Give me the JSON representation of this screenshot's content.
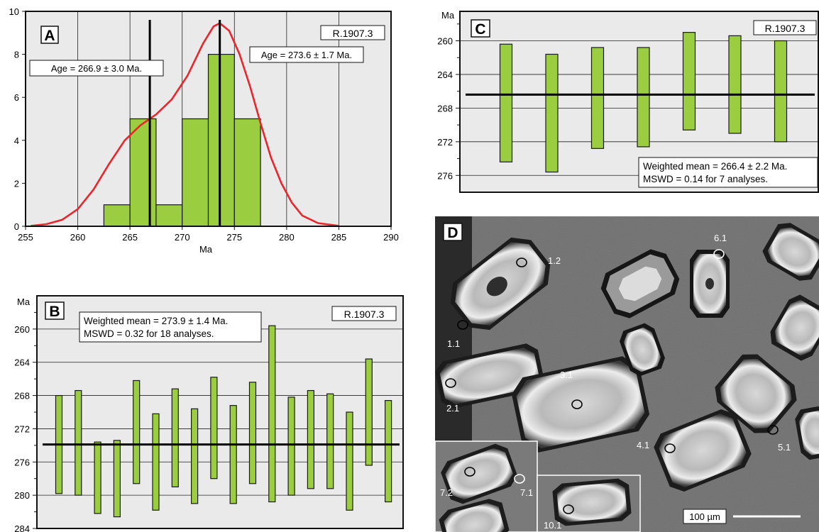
{
  "colors": {
    "bar_fill": "#9acd3f",
    "bar_stroke": "#1a1a1a",
    "curve": "#e8262b",
    "plot_bg": "#eaeaea",
    "mean_line": "#000000"
  },
  "chart_data": [
    {
      "id": "A",
      "type": "bar",
      "panel_letter": "A",
      "sample": "R.1907.3",
      "xlabel": "Ma",
      "xlim": [
        255,
        290
      ],
      "ylim": [
        0,
        10
      ],
      "x_ticks": [
        255,
        260,
        265,
        270,
        275,
        280,
        285,
        290
      ],
      "y_ticks": [
        0,
        2,
        4,
        6,
        8,
        10
      ],
      "grid": true,
      "bins": [
        {
          "from": 262.5,
          "to": 265,
          "count": 1
        },
        {
          "from": 265,
          "to": 267.5,
          "count": 5
        },
        {
          "from": 267.5,
          "to": 270,
          "count": 1
        },
        {
          "from": 270,
          "to": 272.5,
          "count": 5
        },
        {
          "from": 272.5,
          "to": 275,
          "count": 8
        },
        {
          "from": 275,
          "to": 277.5,
          "count": 5
        }
      ],
      "density_curve": [
        [
          255.5,
          0.02
        ],
        [
          257,
          0.1
        ],
        [
          258.5,
          0.3
        ],
        [
          260,
          0.8
        ],
        [
          261.5,
          1.7
        ],
        [
          263,
          2.9
        ],
        [
          264.5,
          4.0
        ],
        [
          266,
          4.7
        ],
        [
          267.5,
          5.2
        ],
        [
          269,
          5.9
        ],
        [
          270.5,
          7.0
        ],
        [
          272,
          8.5
        ],
        [
          273,
          9.3
        ],
        [
          273.6,
          9.45
        ],
        [
          274.5,
          9.1
        ],
        [
          275.5,
          8.0
        ],
        [
          276.5,
          6.5
        ],
        [
          277.5,
          4.8
        ],
        [
          278.5,
          3.2
        ],
        [
          279.5,
          2.0
        ],
        [
          280.5,
          1.1
        ],
        [
          281.5,
          0.5
        ],
        [
          283,
          0.15
        ],
        [
          285,
          0.02
        ]
      ],
      "age_lines": [
        {
          "x": 266.9,
          "label": "Age = 266.9 ± 3.0 Ma."
        },
        {
          "x": 273.6,
          "label": "Age = 273.6 ± 1.7 Ma."
        }
      ]
    },
    {
      "id": "B",
      "type": "bar",
      "subtype": "error-bars",
      "panel_letter": "B",
      "sample": "R.1907.3",
      "ylabel": "Ma",
      "ylim": [
        284,
        256
      ],
      "y_ticks": [
        260,
        264,
        268,
        272,
        276,
        280,
        284
      ],
      "grid": true,
      "ranges": [
        [
          268.0,
          279.8
        ],
        [
          267.4,
          280.0
        ],
        [
          273.6,
          282.2
        ],
        [
          273.4,
          282.6
        ],
        [
          266.2,
          278.6
        ],
        [
          270.2,
          281.8
        ],
        [
          267.2,
          279.0
        ],
        [
          269.6,
          281.0
        ],
        [
          265.8,
          278.0
        ],
        [
          269.2,
          281.0
        ],
        [
          266.4,
          278.6
        ],
        [
          259.6,
          280.8
        ],
        [
          268.2,
          280.0
        ],
        [
          267.4,
          279.2
        ],
        [
          267.8,
          279.2
        ],
        [
          270.0,
          281.8
        ],
        [
          263.6,
          276.4
        ],
        [
          268.6,
          280.8
        ]
      ],
      "mean": 273.9,
      "label_line1": "Weighted mean = 273.9 ± 1.4 Ma.",
      "label_line2": "MSWD = 0.32 for 18 analyses."
    },
    {
      "id": "C",
      "type": "bar",
      "subtype": "error-bars",
      "panel_letter": "C",
      "sample": "R.1907.3",
      "ylabel": "Ma",
      "ylim": [
        278,
        256.5
      ],
      "y_ticks": [
        260,
        264,
        268,
        272,
        276
      ],
      "grid": true,
      "ranges": [
        [
          260.4,
          274.4
        ],
        [
          261.6,
          275.6
        ],
        [
          260.8,
          272.8
        ],
        [
          260.8,
          272.6
        ],
        [
          259.0,
          270.6
        ],
        [
          259.4,
          271.0
        ],
        [
          260.0,
          272.0
        ]
      ],
      "mean": 266.4,
      "label_line1": "Weighted mean = 266.4 ± 2.2 Ma.",
      "label_line2": "MSWD = 0.14 for 7 analyses."
    }
  ],
  "image_panel": {
    "panel_letter": "D",
    "scale_label": "100 µm",
    "spot_labels": [
      "1.1",
      "1.2",
      "2.1",
      "3.1",
      "4.1",
      "5.1",
      "6.1",
      "7.1",
      "7.2",
      "10.1"
    ]
  }
}
